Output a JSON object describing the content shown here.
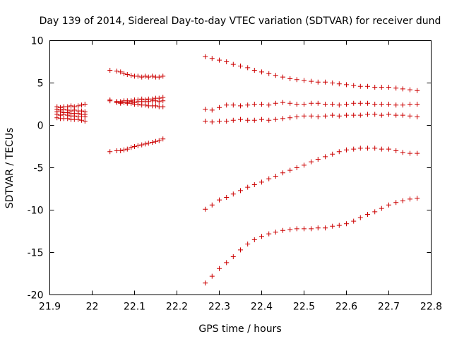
{
  "chart_data": {
    "type": "scatter",
    "title": "Day 139 of 2014, Sidereal Day-to-day VTEC variation (SDTVAR) for receiver dund",
    "xlabel": "GPS time / hours",
    "ylabel": "SDTVAR / TECUs",
    "xlim": [
      21.9,
      22.8
    ],
    "ylim": [
      -20,
      10
    ],
    "xticks": [
      21.9,
      22.0,
      22.1,
      22.2,
      22.3,
      22.4,
      22.5,
      22.6,
      22.7,
      22.8
    ],
    "xtick_labels": [
      "21.9",
      "22",
      "22.1",
      "22.2",
      "22.3",
      "22.4",
      "22.5",
      "22.6",
      "22.7",
      "22.8"
    ],
    "yticks": [
      -20,
      -15,
      -10,
      -5,
      0,
      5,
      10
    ],
    "ytick_labels": [
      "-20",
      "-15",
      "-10",
      "-5",
      "0",
      "5",
      "10"
    ],
    "marker": "+",
    "color": "#cc0000",
    "series": [
      {
        "name": "s1",
        "x": [
          21.917,
          21.925,
          21.933,
          21.942,
          21.95,
          21.958,
          21.967,
          21.975,
          21.983
        ],
        "y": [
          2.2,
          2.1,
          2.2,
          2.2,
          2.3,
          2.2,
          2.3,
          2.4,
          2.5
        ]
      },
      {
        "name": "s2",
        "x": [
          21.917,
          21.925,
          21.933,
          21.942,
          21.95,
          21.958,
          21.967,
          21.975,
          21.983
        ],
        "y": [
          1.9,
          1.8,
          1.9,
          1.8,
          1.7,
          1.8,
          1.7,
          1.7,
          1.6
        ]
      },
      {
        "name": "s3",
        "x": [
          21.917,
          21.925,
          21.933,
          21.942,
          21.95,
          21.958,
          21.967,
          21.975,
          21.983
        ],
        "y": [
          1.6,
          1.6,
          1.5,
          1.5,
          1.4,
          1.4,
          1.4,
          1.3,
          1.3
        ]
      },
      {
        "name": "s4",
        "x": [
          21.917,
          21.925,
          21.933,
          21.942,
          21.95,
          21.958,
          21.967,
          21.975,
          21.983
        ],
        "y": [
          1.3,
          1.2,
          1.3,
          1.2,
          1.1,
          1.1,
          1.0,
          1.0,
          1.0
        ]
      },
      {
        "name": "s5",
        "x": [
          21.917,
          21.925,
          21.933,
          21.942,
          21.95,
          21.958,
          21.967,
          21.975,
          21.983
        ],
        "y": [
          0.9,
          0.8,
          0.8,
          0.8,
          0.7,
          0.7,
          0.7,
          0.6,
          0.5
        ]
      },
      {
        "name": "s6",
        "x": [
          22.042,
          22.058,
          22.067,
          22.075,
          22.083,
          22.092,
          22.1,
          22.108,
          22.117,
          22.125,
          22.133,
          22.142,
          22.15,
          22.158,
          22.167
        ],
        "y": [
          6.5,
          6.4,
          6.3,
          6.1,
          6.0,
          5.9,
          5.8,
          5.8,
          5.7,
          5.8,
          5.7,
          5.8,
          5.7,
          5.7,
          5.8
        ]
      },
      {
        "name": "s7",
        "x": [
          22.042,
          22.058,
          22.067,
          22.075,
          22.083,
          22.092,
          22.1,
          22.108,
          22.117,
          22.125,
          22.133,
          22.142,
          22.15,
          22.158,
          22.167
        ],
        "y": [
          2.9,
          2.8,
          2.7,
          2.7,
          2.6,
          2.6,
          2.5,
          2.5,
          2.4,
          2.4,
          2.3,
          2.3,
          2.3,
          2.2,
          2.2
        ]
      },
      {
        "name": "s8",
        "x": [
          22.042,
          22.058,
          22.067,
          22.075,
          22.083,
          22.092,
          22.1,
          22.108,
          22.117,
          22.125,
          22.133,
          22.142,
          22.15,
          22.158,
          22.167
        ],
        "y": [
          3.0,
          2.8,
          2.8,
          2.9,
          2.9,
          2.9,
          3.0,
          3.0,
          3.1,
          3.0,
          3.1,
          3.1,
          3.2,
          3.2,
          3.3
        ]
      },
      {
        "name": "s9",
        "x": [
          22.058,
          22.067,
          22.075,
          22.083,
          22.092,
          22.1,
          22.108,
          22.117,
          22.125,
          22.133,
          22.142,
          22.15,
          22.158,
          22.167
        ],
        "y": [
          2.7,
          2.6,
          2.7,
          2.7,
          2.8,
          2.7,
          2.8,
          2.8,
          2.8,
          2.8,
          2.9,
          2.9,
          2.8,
          2.9
        ]
      },
      {
        "name": "s10",
        "x": [
          22.042,
          22.058,
          22.067,
          22.075,
          22.083,
          22.092,
          22.1,
          22.108,
          22.117,
          22.125,
          22.133,
          22.142,
          22.15,
          22.158,
          22.167
        ],
        "y": [
          -3.1,
          -3.0,
          -3.0,
          -2.9,
          -2.8,
          -2.6,
          -2.5,
          -2.4,
          -2.3,
          -2.2,
          -2.1,
          -2.0,
          -1.9,
          -1.8,
          -1.6
        ]
      },
      {
        "name": "s11",
        "x": [
          22.267,
          22.283,
          22.3,
          22.317,
          22.333,
          22.35,
          22.367,
          22.383,
          22.4,
          22.417,
          22.433,
          22.45,
          22.467,
          22.483,
          22.5,
          22.517,
          22.533,
          22.55,
          22.567,
          22.583,
          22.6,
          22.617,
          22.633,
          22.65,
          22.667,
          22.683,
          22.7,
          22.717,
          22.733,
          22.75,
          22.767
        ],
        "y": [
          8.1,
          7.9,
          7.7,
          7.5,
          7.2,
          7.0,
          6.8,
          6.5,
          6.3,
          6.1,
          5.9,
          5.7,
          5.5,
          5.4,
          5.3,
          5.2,
          5.1,
          5.1,
          5.0,
          4.9,
          4.8,
          4.7,
          4.6,
          4.6,
          4.5,
          4.5,
          4.5,
          4.4,
          4.3,
          4.2,
          4.1
        ]
      },
      {
        "name": "s12",
        "x": [
          22.267,
          22.283,
          22.3,
          22.317,
          22.333,
          22.35,
          22.367,
          22.383,
          22.4,
          22.417,
          22.433,
          22.45,
          22.467,
          22.483,
          22.5,
          22.517,
          22.533,
          22.55,
          22.567,
          22.583,
          22.6,
          22.617,
          22.633,
          22.65,
          22.667,
          22.683,
          22.7,
          22.717,
          22.733,
          22.75,
          22.767
        ],
        "y": [
          1.9,
          1.8,
          2.1,
          2.4,
          2.4,
          2.3,
          2.4,
          2.5,
          2.5,
          2.4,
          2.6,
          2.7,
          2.6,
          2.5,
          2.5,
          2.6,
          2.6,
          2.5,
          2.5,
          2.4,
          2.5,
          2.6,
          2.6,
          2.6,
          2.5,
          2.5,
          2.5,
          2.4,
          2.4,
          2.5,
          2.5
        ]
      },
      {
        "name": "s13",
        "x": [
          22.267,
          22.283,
          22.3,
          22.317,
          22.333,
          22.35,
          22.367,
          22.383,
          22.4,
          22.417,
          22.433,
          22.45,
          22.467,
          22.483,
          22.5,
          22.517,
          22.533,
          22.55,
          22.567,
          22.583,
          22.6,
          22.617,
          22.633,
          22.65,
          22.667,
          22.683,
          22.7,
          22.717,
          22.733,
          22.75,
          22.767
        ],
        "y": [
          0.5,
          0.4,
          0.5,
          0.5,
          0.6,
          0.7,
          0.6,
          0.6,
          0.7,
          0.6,
          0.7,
          0.8,
          0.9,
          1.0,
          1.1,
          1.1,
          1.0,
          1.1,
          1.2,
          1.1,
          1.2,
          1.2,
          1.2,
          1.3,
          1.3,
          1.2,
          1.3,
          1.2,
          1.2,
          1.1,
          1.0
        ]
      },
      {
        "name": "s14",
        "x": [
          22.267,
          22.283,
          22.3,
          22.317,
          22.333,
          22.35,
          22.367,
          22.383,
          22.4,
          22.417,
          22.433,
          22.45,
          22.467,
          22.483,
          22.5,
          22.517,
          22.533,
          22.55,
          22.567,
          22.583,
          22.6,
          22.617,
          22.633,
          22.65,
          22.667,
          22.683,
          22.7,
          22.717,
          22.733,
          22.75,
          22.767
        ],
        "y": [
          -9.9,
          -9.4,
          -8.8,
          -8.5,
          -8.1,
          -7.7,
          -7.3,
          -7.0,
          -6.7,
          -6.3,
          -6.0,
          -5.6,
          -5.3,
          -5.0,
          -4.7,
          -4.3,
          -4.0,
          -3.7,
          -3.4,
          -3.1,
          -2.9,
          -2.8,
          -2.7,
          -2.7,
          -2.7,
          -2.8,
          -2.8,
          -3.0,
          -3.2,
          -3.3,
          -3.3
        ]
      },
      {
        "name": "s15",
        "x": [
          22.267,
          22.283,
          22.3,
          22.317,
          22.333,
          22.35,
          22.367,
          22.383,
          22.4,
          22.417,
          22.433,
          22.45,
          22.467,
          22.483,
          22.5,
          22.517,
          22.533,
          22.55,
          22.567,
          22.583,
          22.6,
          22.617,
          22.633,
          22.65,
          22.667,
          22.683,
          22.7,
          22.717,
          22.733,
          22.75,
          22.767
        ],
        "y": [
          -18.6,
          -17.8,
          -16.9,
          -16.2,
          -15.5,
          -14.7,
          -14.0,
          -13.5,
          -13.1,
          -12.8,
          -12.6,
          -12.4,
          -12.3,
          -12.2,
          -12.2,
          -12.2,
          -12.1,
          -12.1,
          -11.9,
          -11.8,
          -11.6,
          -11.3,
          -10.9,
          -10.5,
          -10.2,
          -9.8,
          -9.4,
          -9.1,
          -8.9,
          -8.7,
          -8.6
        ]
      }
    ]
  }
}
